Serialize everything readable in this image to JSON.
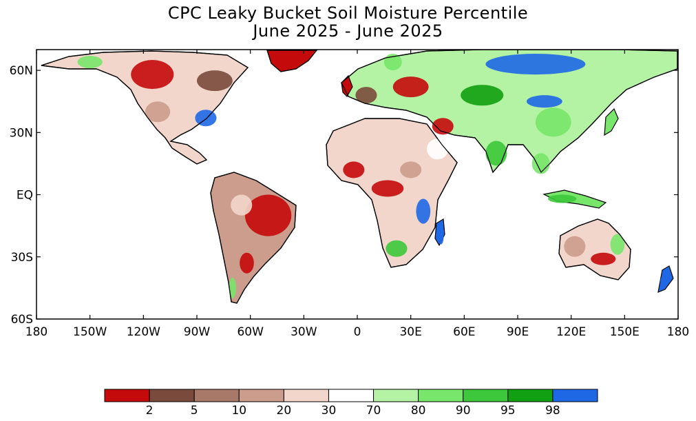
{
  "title": {
    "line1": "CPC Leaky Bucket Soil Moisture Percentile",
    "line2": "June 2025 - June 2025"
  },
  "axes": {
    "lat_ticks": [
      {
        "value": 60,
        "label": "60N"
      },
      {
        "value": 30,
        "label": "30N"
      },
      {
        "value": 0,
        "label": "EQ"
      },
      {
        "value": -30,
        "label": "30S"
      },
      {
        "value": -60,
        "label": "60S"
      }
    ],
    "lon_ticks": [
      {
        "value": -180,
        "label": "180"
      },
      {
        "value": -150,
        "label": "150W"
      },
      {
        "value": -120,
        "label": "120W"
      },
      {
        "value": -90,
        "label": "90W"
      },
      {
        "value": -60,
        "label": "60W"
      },
      {
        "value": -30,
        "label": "30W"
      },
      {
        "value": 0,
        "label": "0"
      },
      {
        "value": 30,
        "label": "30E"
      },
      {
        "value": 60,
        "label": "60E"
      },
      {
        "value": 90,
        "label": "90E"
      },
      {
        "value": 120,
        "label": "120E"
      },
      {
        "value": 150,
        "label": "150E"
      },
      {
        "value": 180,
        "label": "180"
      }
    ],
    "lon_range": [
      -180,
      180
    ],
    "lat_range": [
      -60,
      70
    ]
  },
  "colorbar": {
    "colors": [
      "#c40a0a",
      "#7a4a3c",
      "#a87868",
      "#cc9c8c",
      "#f2d6cb",
      "#ffffff",
      "#b4f2a4",
      "#78e66a",
      "#3cc83a",
      "#11a011",
      "#1e68e6"
    ],
    "labels": [
      "2",
      "5",
      "10",
      "20",
      "30",
      "70",
      "80",
      "90",
      "95",
      "98"
    ]
  },
  "regions": [
    {
      "name": "Brazil interior",
      "lon": -50,
      "lat": -10,
      "rx": 13,
      "ry": 10,
      "percentile_class": 0
    },
    {
      "name": "Amazon west",
      "lon": -65,
      "lat": -5,
      "rx": 6,
      "ry": 5,
      "percentile_class": 4
    },
    {
      "name": "Argentina",
      "lon": -62,
      "lat": -33,
      "rx": 4,
      "ry": 5,
      "percentile_class": 0
    },
    {
      "name": "Central Africa",
      "lon": 17,
      "lat": 3,
      "rx": 9,
      "ry": 4,
      "percentile_class": 0
    },
    {
      "name": "West Africa",
      "lon": -2,
      "lat": 12,
      "rx": 6,
      "ry": 4,
      "percentile_class": 0
    },
    {
      "name": "Sahel east",
      "lon": 30,
      "lat": 12,
      "rx": 6,
      "ry": 4,
      "percentile_class": 3
    },
    {
      "name": "East Africa",
      "lon": 37,
      "lat": -8,
      "rx": 4,
      "ry": 6,
      "percentile_class": 10
    },
    {
      "name": "Southern Africa",
      "lon": 22,
      "lat": -26,
      "rx": 6,
      "ry": 4,
      "percentile_class": 8
    },
    {
      "name": "Siberia north",
      "lon": 100,
      "lat": 63,
      "rx": 28,
      "ry": 5,
      "percentile_class": 10
    },
    {
      "name": "Central Asia",
      "lon": 70,
      "lat": 48,
      "rx": 12,
      "ry": 5,
      "percentile_class": 9
    },
    {
      "name": "China",
      "lon": 110,
      "lat": 35,
      "rx": 10,
      "ry": 7,
      "percentile_class": 7
    },
    {
      "name": "Mongolia",
      "lon": 105,
      "lat": 45,
      "rx": 10,
      "ry": 3,
      "percentile_class": 10
    },
    {
      "name": "India",
      "lon": 78,
      "lat": 20,
      "rx": 6,
      "ry": 6,
      "percentile_class": 8
    },
    {
      "name": "Southeast Asia",
      "lon": 103,
      "lat": 15,
      "rx": 5,
      "ry": 5,
      "percentile_class": 7
    },
    {
      "name": "Europe east",
      "lon": 30,
      "lat": 52,
      "rx": 10,
      "ry": 5,
      "percentile_class": 0
    },
    {
      "name": "Europe west",
      "lon": 5,
      "lat": 48,
      "rx": 6,
      "ry": 4,
      "percentile_class": 1
    },
    {
      "name": "Scandinavia",
      "lon": 20,
      "lat": 64,
      "rx": 5,
      "ry": 4,
      "percentile_class": 7
    },
    {
      "name": "Canada west",
      "lon": -115,
      "lat": 58,
      "rx": 12,
      "ry": 7,
      "percentile_class": 0
    },
    {
      "name": "Canada east",
      "lon": -80,
      "lat": 55,
      "rx": 10,
      "ry": 5,
      "percentile_class": 1
    },
    {
      "name": "US west",
      "lon": -112,
      "lat": 40,
      "rx": 7,
      "ry": 5,
      "percentile_class": 3
    },
    {
      "name": "US east",
      "lon": -85,
      "lat": 37,
      "rx": 6,
      "ry": 4,
      "percentile_class": 10
    },
    {
      "name": "Alaska",
      "lon": -150,
      "lat": 64,
      "rx": 7,
      "ry": 3,
      "percentile_class": 7
    },
    {
      "name": "Greenland south",
      "lon": -42,
      "lat": 66,
      "rx": 5,
      "ry": 3,
      "percentile_class": 0
    },
    {
      "name": "Australia west",
      "lon": 122,
      "lat": -25,
      "rx": 6,
      "ry": 5,
      "percentile_class": 3
    },
    {
      "name": "Australia south",
      "lon": 138,
      "lat": -31,
      "rx": 7,
      "ry": 3,
      "percentile_class": 0
    },
    {
      "name": "Australia east",
      "lon": 146,
      "lat": -24,
      "rx": 4,
      "ry": 5,
      "percentile_class": 7
    },
    {
      "name": "Middle East",
      "lon": 48,
      "lat": 33,
      "rx": 6,
      "ry": 4,
      "percentile_class": 0
    },
    {
      "name": "Arabia",
      "lon": 45,
      "lat": 22,
      "rx": 6,
      "ry": 5,
      "percentile_class": 5
    },
    {
      "name": "Indonesia",
      "lon": 115,
      "lat": -2,
      "rx": 8,
      "ry": 2,
      "percentile_class": 8
    },
    {
      "name": "New Zealand",
      "lon": 172,
      "lat": -42,
      "rx": 2,
      "ry": 3,
      "percentile_class": 10
    },
    {
      "name": "Patagonia",
      "lon": -70,
      "lat": -45,
      "rx": 2,
      "ry": 5,
      "percentile_class": 7
    },
    {
      "name": "Madagascar",
      "lon": 47,
      "lat": -20,
      "rx": 1.5,
      "ry": 4,
      "percentile_class": 10
    }
  ]
}
